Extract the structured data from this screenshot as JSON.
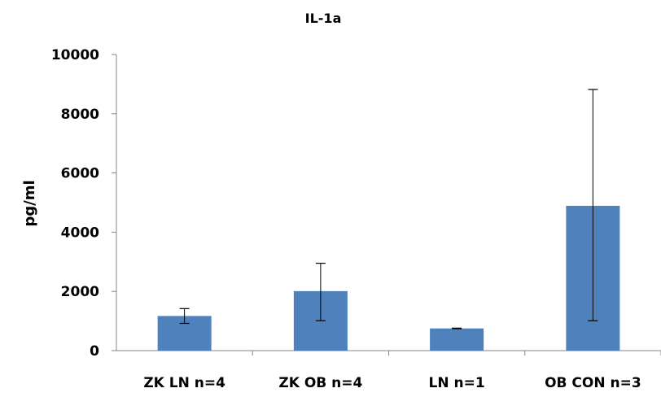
{
  "chart_data": {
    "type": "bar",
    "title": "IL-1a",
    "xlabel": "",
    "ylabel": "pg/ml",
    "categories": [
      "ZK LN n=4",
      "ZK OB n=4",
      "LN n=1",
      "OB CON n=3"
    ],
    "series": [
      {
        "values": [
          1170,
          2010,
          750,
          4890
        ],
        "error_low": [
          920,
          1010,
          740,
          1010
        ],
        "error_high": [
          1420,
          2950,
          760,
          8820
        ],
        "color": "#4f81bd"
      }
    ],
    "ylim": [
      0,
      10000
    ],
    "yticks": [
      0,
      2000,
      4000,
      6000,
      8000,
      10000
    ],
    "grid": false,
    "legend": "none"
  }
}
